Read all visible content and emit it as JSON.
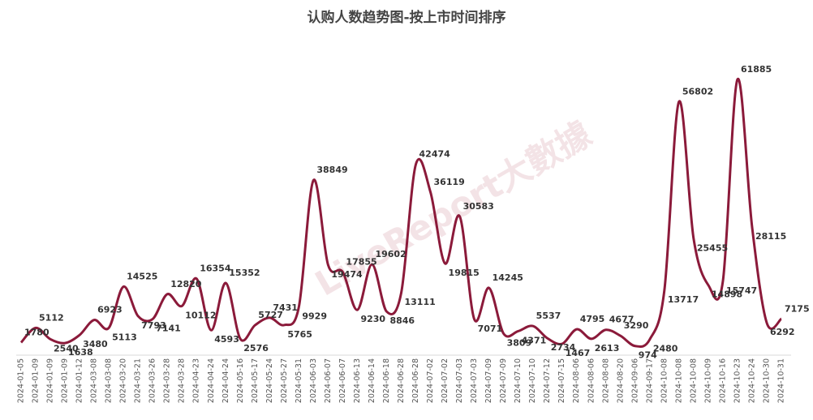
{
  "chart_data": {
    "type": "line",
    "title": "认购人数趋势图-按上市时间排序",
    "watermark": "LiveReport大數據",
    "categories": [
      "2024-01-05",
      "2024-01-09",
      "2024-01-09",
      "2024-01-09",
      "2024-01-12",
      "2024-03-08",
      "2024-03-08",
      "2024-03-20",
      "2024-03-21",
      "2024-03-26",
      "2024-03-28",
      "2024-03-28",
      "2024-04-23",
      "2024-04-24",
      "2024-04-24",
      "2024-05-16",
      "2024-05-17",
      "2024-05-24",
      "2024-05-27",
      "2024-05-31",
      "2024-06-03",
      "2024-06-07",
      "2024-06-07",
      "2024-06-13",
      "2024-06-14",
      "2024-06-18",
      "2024-06-28",
      "2024-06-28",
      "2024-07-02",
      "2024-07-02",
      "2024-07-03",
      "2024-07-03",
      "2024-07-09",
      "2024-07-09",
      "2024-07-10",
      "2024-07-10",
      "2024-07-12",
      "2024-07-15",
      "2024-08-06",
      "2024-08-06",
      "2024-08-08",
      "2024-08-20",
      "2024-09-06",
      "2024-09-17",
      "2024-10-08",
      "2024-10-08",
      "2024-10-08",
      "2024-10-09",
      "2024-10-16",
      "2024-10-23",
      "2024-10-24",
      "2024-10-30",
      "2024-10-31"
    ],
    "series": [
      {
        "name": "认购人数",
        "color": "#8b1a3a",
        "values": [
          1780,
          5112,
          2540,
          1638,
          3480,
          6923,
          5113,
          14525,
          7793,
          7141,
          12820,
          10112,
          16354,
          4593,
          15352,
          2576,
          5727,
          7431,
          5765,
          9929,
          38849,
          19474,
          17855,
          9230,
          19602,
          8846,
          13111,
          42474,
          36119,
          19815,
          30583,
          7071,
          14245,
          3809,
          4371,
          5537,
          2734,
          1467,
          4795,
          2613,
          4677,
          3290,
          974,
          2480,
          13717,
          56802,
          25455,
          14898,
          15747,
          61885,
          28115,
          6292,
          7175
        ]
      }
    ],
    "ylim": [
      0,
      65000
    ]
  }
}
